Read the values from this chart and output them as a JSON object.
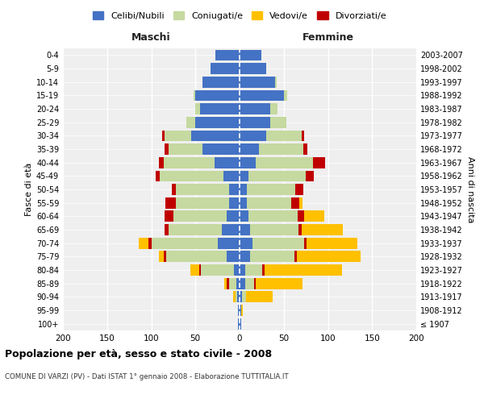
{
  "age_groups": [
    "100+",
    "95-99",
    "90-94",
    "85-89",
    "80-84",
    "75-79",
    "70-74",
    "65-69",
    "60-64",
    "55-59",
    "50-54",
    "45-49",
    "40-44",
    "35-39",
    "30-34",
    "25-29",
    "20-24",
    "15-19",
    "10-14",
    "5-9",
    "0-4"
  ],
  "birth_years": [
    "≤ 1907",
    "1908-1912",
    "1913-1917",
    "1918-1922",
    "1923-1927",
    "1928-1932",
    "1933-1937",
    "1938-1942",
    "1943-1947",
    "1948-1952",
    "1953-1957",
    "1958-1962",
    "1963-1967",
    "1968-1972",
    "1973-1977",
    "1978-1982",
    "1983-1987",
    "1988-1992",
    "1993-1997",
    "1998-2002",
    "2003-2007"
  ],
  "male_celibi": [
    2,
    2,
    3,
    4,
    6,
    15,
    25,
    20,
    15,
    12,
    12,
    18,
    28,
    42,
    55,
    50,
    45,
    50,
    42,
    33,
    27
  ],
  "male_coniugati": [
    0,
    0,
    2,
    8,
    38,
    68,
    75,
    60,
    60,
    60,
    60,
    72,
    58,
    38,
    30,
    10,
    5,
    2,
    0,
    0,
    0
  ],
  "male_vedovi": [
    0,
    0,
    2,
    5,
    12,
    8,
    14,
    5,
    3,
    2,
    2,
    0,
    0,
    0,
    0,
    0,
    0,
    0,
    0,
    0,
    0
  ],
  "male_divorziati": [
    0,
    0,
    0,
    3,
    2,
    3,
    3,
    5,
    10,
    12,
    5,
    5,
    5,
    5,
    3,
    0,
    0,
    0,
    0,
    0,
    0
  ],
  "female_nubili": [
    2,
    2,
    3,
    6,
    6,
    12,
    15,
    12,
    10,
    8,
    8,
    10,
    18,
    22,
    30,
    35,
    35,
    50,
    40,
    30,
    25
  ],
  "female_coniugate": [
    0,
    0,
    4,
    10,
    20,
    50,
    58,
    55,
    56,
    50,
    55,
    65,
    65,
    50,
    40,
    18,
    8,
    4,
    2,
    0,
    0
  ],
  "female_vedove": [
    0,
    2,
    30,
    55,
    90,
    75,
    60,
    50,
    30,
    13,
    8,
    4,
    3,
    2,
    2,
    0,
    0,
    0,
    0,
    0,
    0
  ],
  "female_divorziate": [
    0,
    0,
    0,
    2,
    2,
    3,
    3,
    3,
    7,
    10,
    9,
    9,
    14,
    5,
    3,
    0,
    0,
    0,
    0,
    0,
    0
  ],
  "colors": {
    "celibi": "#4472c4",
    "coniugati": "#c5d9a0",
    "vedovi": "#ffc000",
    "divorziati": "#c00000"
  },
  "legend_labels": [
    "Celibi/Nubili",
    "Coniugati/e",
    "Vedovi/e",
    "Divorziati/e"
  ],
  "title": "Popolazione per età, sesso e stato civile - 2008",
  "subtitle": "COMUNE DI VARZI (PV) - Dati ISTAT 1° gennaio 2008 - Elaborazione TUTTITALIA.IT",
  "label_maschi": "Maschi",
  "label_femmine": "Femmine",
  "ylabel_left": "Fasce di età",
  "ylabel_right": "Anni di nascita",
  "xlim": 200,
  "bg_color": "#ffffff",
  "plot_bg": "#efefef",
  "grid_color": "#cccccc"
}
